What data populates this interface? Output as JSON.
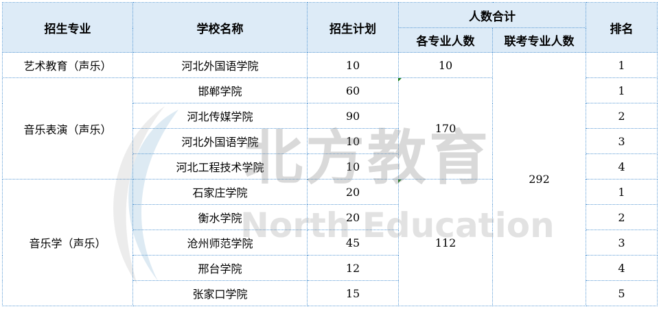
{
  "headers": {
    "major": "招生专业",
    "school": "学校名称",
    "plan": "招生计划",
    "total_group": "人数合计",
    "per_major": "各专业人数",
    "joint_exam": "联考专业人数",
    "rank": "排名"
  },
  "groups": [
    {
      "major": "艺术教育（声乐）",
      "per_major_total": "10",
      "rows": [
        {
          "school": "河北外国语学院",
          "plan": "10",
          "rank": "1"
        }
      ]
    },
    {
      "major": "音乐表演（声乐）",
      "per_major_total": "170",
      "rows": [
        {
          "school": "邯郸学院",
          "plan": "60",
          "rank": "1"
        },
        {
          "school": "河北传媒学院",
          "plan": "90",
          "rank": "2"
        },
        {
          "school": "河北外国语学院",
          "plan": "10",
          "rank": "3"
        },
        {
          "school": "河北工程技术学院",
          "plan": "10",
          "rank": "4"
        }
      ]
    },
    {
      "major": "音乐学（声乐）",
      "per_major_total": "112",
      "rows": [
        {
          "school": "石家庄学院",
          "plan": "20",
          "rank": "1"
        },
        {
          "school": "衡水学院",
          "plan": "20",
          "rank": "2"
        },
        {
          "school": "沧州师范学院",
          "plan": "45",
          "rank": "3"
        },
        {
          "school": "邢台学院",
          "plan": "12",
          "rank": "4"
        },
        {
          "school": "张家口学院",
          "plan": "15",
          "rank": "5"
        }
      ]
    }
  ],
  "joint_exam_total": "292",
  "watermark": {
    "cn": "北方教育",
    "en": "North Education"
  },
  "colors": {
    "header_bg": "#ddebf7",
    "grid": "#5b9bd5"
  }
}
